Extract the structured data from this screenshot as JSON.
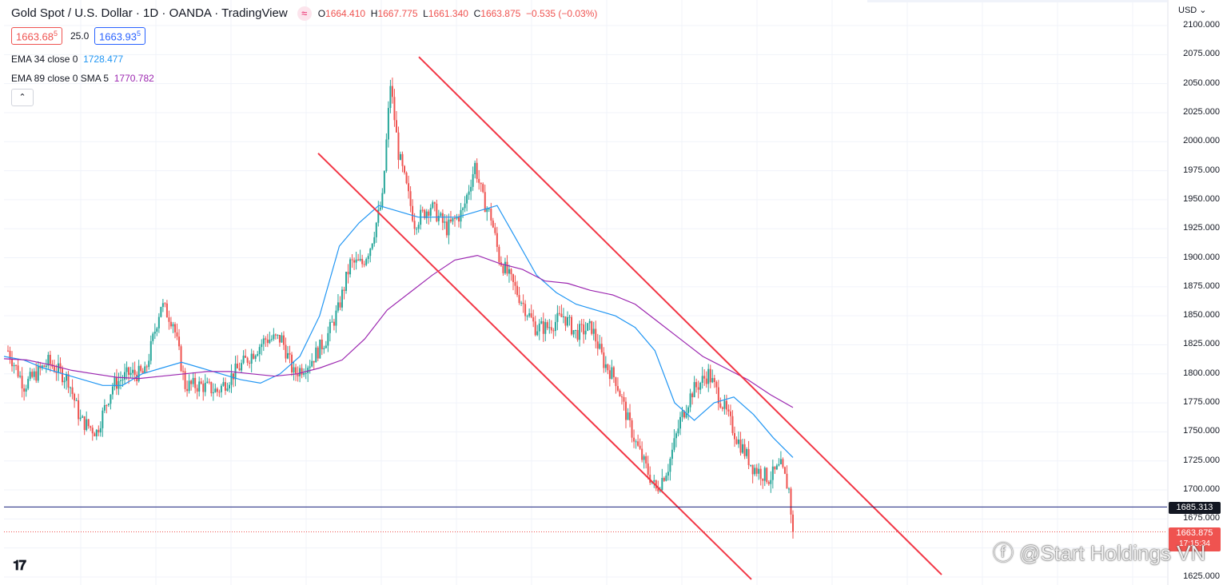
{
  "header": {
    "title": "Gold Spot / U.S. Dollar · 1D · OANDA · TradingView",
    "ohlc": {
      "open_label": "O",
      "open": "1664.410",
      "high_label": "H",
      "high": "1667.775",
      "low_label": "L",
      "low": "1661.340",
      "close_label": "C",
      "close": "1663.875",
      "change": "−0.535 (−0.03%)"
    },
    "sell_price": "1663.68",
    "sell_price_sup": "5",
    "spread": "25.0",
    "buy_price": "1663.93",
    "buy_price_sup": "5"
  },
  "indicators": [
    {
      "label": "EMA 34 close 0",
      "value": "1728.477",
      "color": "#2196f3"
    },
    {
      "label": "EMA 89 close 0 SMA 5",
      "value": "1770.782",
      "color": "#9c27b0"
    }
  ],
  "axis": {
    "currency": "USD",
    "ticks": [
      "2100.000",
      "2075.000",
      "2050.000",
      "2025.000",
      "2000.000",
      "1975.000",
      "1950.000",
      "1925.000",
      "1900.000",
      "1875.000",
      "1850.000",
      "1825.000",
      "1800.000",
      "1775.000",
      "1750.000",
      "1725.000",
      "1700.000",
      "1675.000",
      "1650.000",
      "1625.000"
    ]
  },
  "price_tags": {
    "horizontal_line": "1685.313",
    "last_price": "1663.875",
    "countdown": "17:15:34"
  },
  "watermark": "@Start Holdings VN",
  "colors": {
    "up": "#26a69a",
    "down": "#ef5350",
    "ema34": "#2196f3",
    "ema89": "#9c27b0",
    "channel": "#f23645",
    "hline": "#1a237e"
  },
  "chart_data": {
    "type": "candlestick",
    "y_range": [
      1625,
      2105
    ],
    "horizontal_line": 1685.313,
    "last_price": 1663.875,
    "ema34_approx": [
      1815,
      1812,
      1805,
      1800,
      1795,
      1790,
      1790,
      1800,
      1805,
      1810,
      1805,
      1800,
      1795,
      1792,
      1800,
      1815,
      1850,
      1910,
      1930,
      1945,
      1940,
      1935,
      1935,
      1935,
      1940,
      1945,
      1915,
      1885,
      1870,
      1860,
      1855,
      1850,
      1840,
      1820,
      1775,
      1760,
      1775,
      1780,
      1765,
      1745,
      1728
    ],
    "ema89_approx": [
      1813,
      1812,
      1808,
      1803,
      1800,
      1797,
      1796,
      1798,
      1800,
      1802,
      1802,
      1800,
      1798,
      1800,
      1805,
      1812,
      1830,
      1855,
      1870,
      1885,
      1898,
      1902,
      1895,
      1890,
      1880,
      1878,
      1872,
      1868,
      1860,
      1845,
      1830,
      1815,
      1805,
      1795,
      1782,
      1771
    ]
  }
}
